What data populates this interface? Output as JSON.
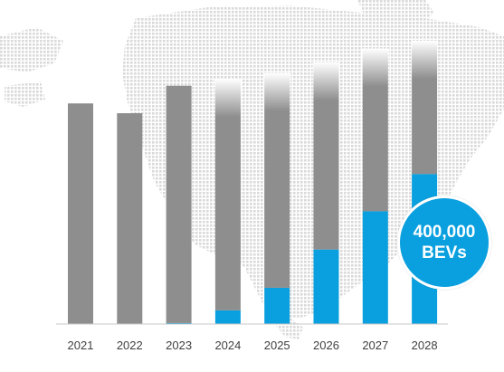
{
  "chart_data": {
    "type": "bar",
    "stacked": true,
    "categories": [
      "2021",
      "2022",
      "2023",
      "2024",
      "2025",
      "2026",
      "2027",
      "2028"
    ],
    "series": [
      {
        "values": [
          0,
          0,
          1,
          14,
          37,
          76,
          115,
          153
        ],
        "color": "#0aa0df"
      },
      {
        "values": [
          225,
          215,
          242,
          235,
          218,
          190,
          165,
          135
        ],
        "color": "#8e8e8e"
      }
    ],
    "faded_top": [
      false,
      false,
      false,
      true,
      true,
      true,
      true,
      true
    ],
    "ylim": [
      0,
      300
    ],
    "grid": false,
    "legend": "none",
    "axis_color": "#c8c8c8"
  },
  "callout": {
    "line1": "400,000",
    "line2": "BEVs",
    "color": "#0aa0df"
  }
}
